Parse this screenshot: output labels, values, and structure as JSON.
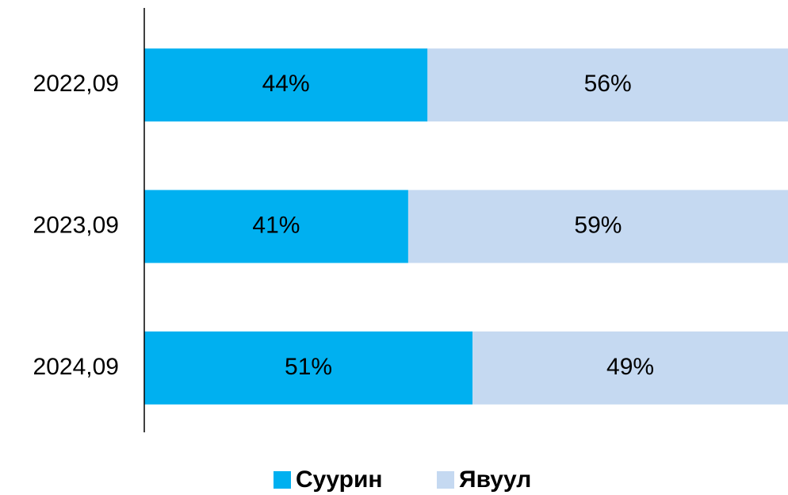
{
  "chart_data": {
    "type": "bar",
    "orientation": "horizontal",
    "stacked": true,
    "categories": [
      "2022,09",
      "2023,09",
      "2024,09"
    ],
    "series": [
      {
        "name": "Суурин",
        "color": "#00b0f0",
        "values": [
          44,
          41,
          51
        ],
        "value_labels": [
          "44%",
          "41%",
          "51%"
        ]
      },
      {
        "name": "Явуул",
        "color": "#c5d9f1",
        "values": [
          56,
          59,
          49
        ],
        "value_labels": [
          "56%",
          "59%",
          "49%"
        ]
      }
    ],
    "xlim": [
      0,
      100
    ],
    "legend": "bottom"
  }
}
